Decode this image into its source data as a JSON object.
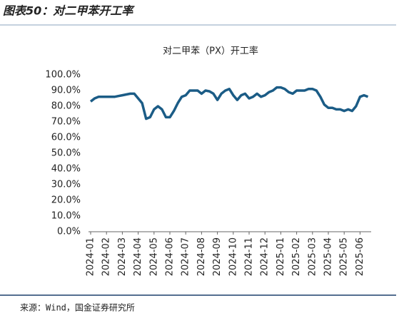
{
  "header": "图表50：对二甲苯开工率",
  "source": "来源：Wind，国金证券研究所",
  "chart_data": {
    "type": "line",
    "title": "对二甲苯（PX）开工率",
    "categories": [
      "2024-01",
      null,
      null,
      null,
      "2024-02",
      null,
      null,
      null,
      "2024-03",
      null,
      null,
      null,
      "2024-04",
      null,
      null,
      null,
      "2024-05",
      null,
      null,
      null,
      "2024-06",
      null,
      null,
      null,
      "2024-07",
      null,
      null,
      null,
      "2024-08",
      null,
      null,
      null,
      "2024-09",
      null,
      null,
      null,
      "2024-10",
      null,
      null,
      null,
      "2024-11",
      null,
      null,
      null,
      "2024-12",
      null,
      null,
      null,
      "2025-01",
      null,
      null,
      null,
      "2025-02",
      null,
      null,
      null,
      "2025-03",
      null,
      null,
      null,
      "2025-04",
      null,
      null,
      null,
      "2025-05",
      null,
      null,
      null,
      "2025-06",
      null,
      null
    ],
    "values": [
      83,
      85,
      86,
      86,
      86,
      86,
      86,
      86.5,
      87,
      87.5,
      88,
      88,
      85,
      82,
      72,
      73,
      78,
      80,
      78,
      73,
      73,
      77,
      82,
      86,
      87,
      90,
      90,
      90,
      88,
      90,
      89.5,
      88,
      84,
      88,
      90,
      91,
      87,
      84,
      87,
      88,
      85,
      86,
      88,
      86,
      87,
      89,
      90,
      92,
      92,
      91,
      89,
      88,
      90,
      90,
      90,
      91,
      91,
      90,
      86,
      81,
      79,
      79,
      78,
      78,
      77,
      78,
      77,
      80,
      86,
      87,
      86
    ],
    "color": "#1b5c86",
    "ylim": [
      0,
      100
    ],
    "yticks": [
      {
        "value": 0,
        "label": "0.0%"
      },
      {
        "value": 10,
        "label": "10.0%"
      },
      {
        "value": 20,
        "label": "20.0%"
      },
      {
        "value": 30,
        "label": "30.0%"
      },
      {
        "value": 40,
        "label": "40.0%"
      },
      {
        "value": 50,
        "label": "50.0%"
      },
      {
        "value": 60,
        "label": "60.0%"
      },
      {
        "value": 70,
        "label": "70.0%"
      },
      {
        "value": 80,
        "label": "80.0%"
      },
      {
        "value": 90,
        "label": "90.0%"
      },
      {
        "value": 100,
        "label": "100.0%"
      }
    ],
    "grid": false
  }
}
